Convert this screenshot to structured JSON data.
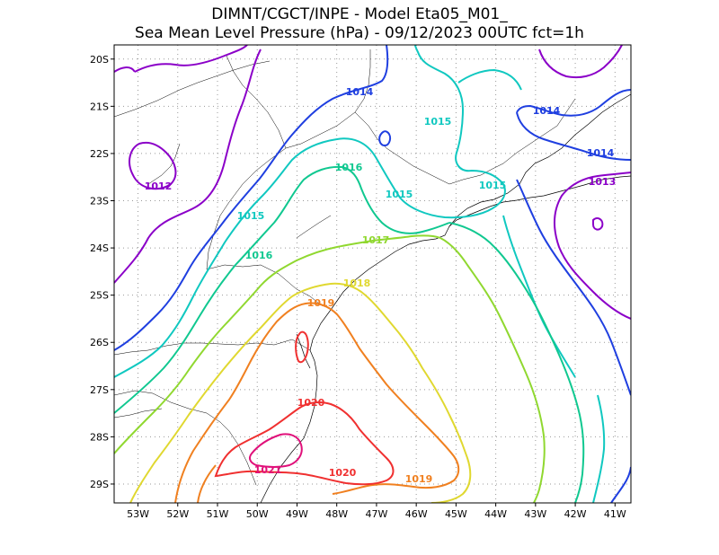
{
  "header": {
    "line1": "DIMNT/CGCT/INPE -  Model Eta05_M01_",
    "line2": "Sea Mean Level Pressure (hPa) - 09/12/2023 00UTC fct=1h"
  },
  "map": {
    "lon_range": [
      -53.6,
      -40.6
    ],
    "lat_range": [
      -29.4,
      -19.7
    ],
    "lat_ticks": [
      "20S",
      "21S",
      "22S",
      "23S",
      "24S",
      "25S",
      "26S",
      "27S",
      "28S",
      "29S"
    ],
    "lat_values": [
      -20,
      -21,
      -22,
      -23,
      -24,
      -25,
      -26,
      -27,
      -28,
      -29
    ],
    "lon_ticks": [
      "53W",
      "52W",
      "51W",
      "50W",
      "49W",
      "48W",
      "47W",
      "46W",
      "45W",
      "44W",
      "43W",
      "42W",
      "41W"
    ],
    "lon_values": [
      -53,
      -52,
      -51,
      -50,
      -49,
      -48,
      -47,
      -46,
      -45,
      -44,
      -43,
      -42,
      -41
    ],
    "grid": true
  },
  "contours": {
    "colors": {
      "1012": "#8b00c8",
      "1013": "#8b00c8",
      "1014": "#1f3fe0",
      "1015": "#10c8c0",
      "1016": "#10c890",
      "1017": "#90d830",
      "1018": "#e0d830",
      "1019": "#f08020",
      "1020": "#f03030",
      "1021": "#e0107a"
    },
    "labels": [
      {
        "text": "1012",
        "level": "1012"
      },
      {
        "text": "1013",
        "level": "1013"
      },
      {
        "text": "1014",
        "level": "1014"
      },
      {
        "text": "1014",
        "level": "1014"
      },
      {
        "text": "1014",
        "level": "1014"
      },
      {
        "text": "1015",
        "level": "1015"
      },
      {
        "text": "1015",
        "level": "1015"
      },
      {
        "text": "1015",
        "level": "1015"
      },
      {
        "text": "1015",
        "level": "1015"
      },
      {
        "text": "1016",
        "level": "1016"
      },
      {
        "text": "1016",
        "level": "1016"
      },
      {
        "text": "1017",
        "level": "1017"
      },
      {
        "text": "1018",
        "level": "1018"
      },
      {
        "text": "1019",
        "level": "1019"
      },
      {
        "text": "1019",
        "level": "1019"
      },
      {
        "text": "1020",
        "level": "1020"
      },
      {
        "text": "1020",
        "level": "1020"
      },
      {
        "text": "1021",
        "level": "1021"
      }
    ]
  }
}
